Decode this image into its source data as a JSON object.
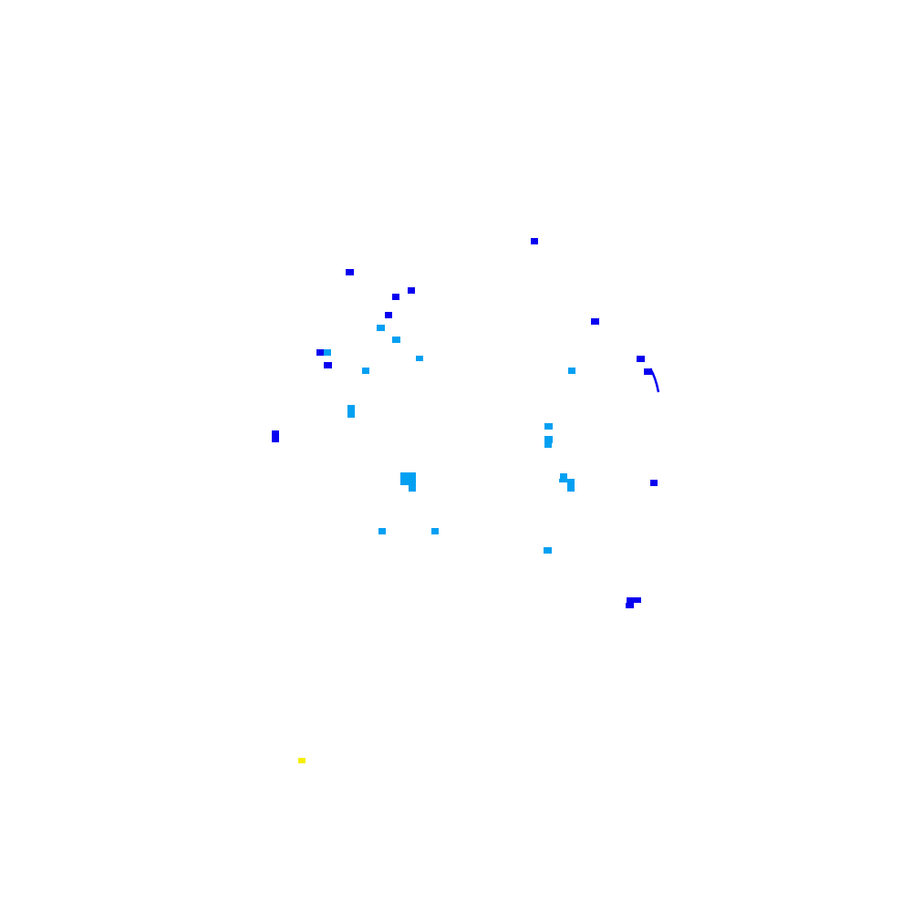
{
  "colors": {
    "dark_blue": "#0800f0",
    "light_blue": "#03a0f2",
    "yellow": "#f5f000",
    "background": "#ffffff"
  }
}
